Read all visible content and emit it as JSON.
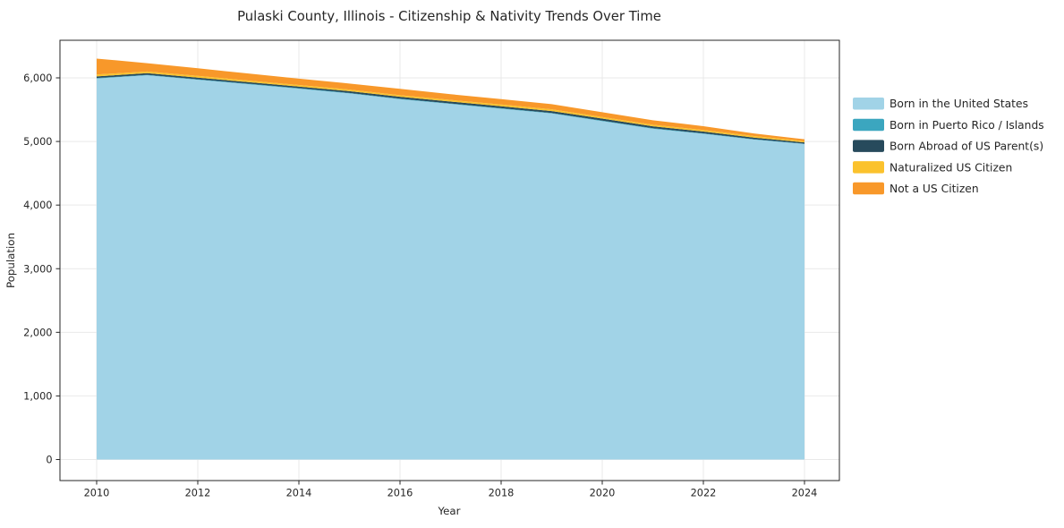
{
  "title": "Pulaski County, Illinois - Citizenship & Nativity Trends Over Time",
  "axes": {
    "xlabel": "Year",
    "ylabel": "Population"
  },
  "colors": {
    "background": "#ffffff",
    "text": "#262626",
    "frame": "#262626",
    "grid": "#e9e9e9",
    "born_us": "#a1d3e7",
    "puerto_rico": "#3ba6bf",
    "born_abroad": "#274a5c",
    "naturalized": "#fbc22d",
    "not_citizen": "#f8982a"
  },
  "chart_data": {
    "type": "area",
    "stacked": true,
    "title": "Pulaski County, Illinois - Citizenship & Nativity Trends Over Time",
    "xlabel": "Year",
    "ylabel": "Population",
    "grid": true,
    "legend_position": "right",
    "x": [
      2010,
      2011,
      2012,
      2013,
      2014,
      2015,
      2016,
      2017,
      2018,
      2019,
      2020,
      2021,
      2022,
      2023,
      2024
    ],
    "xticks": [
      2010,
      2012,
      2014,
      2016,
      2018,
      2020,
      2022,
      2024
    ],
    "yticks": [
      0,
      1000,
      2000,
      3000,
      4000,
      5000,
      6000
    ],
    "ylim": [
      0,
      6590
    ],
    "series": [
      {
        "name": "Born in the United States",
        "color": "#a1d3e7",
        "values": [
          5990,
          6040,
          5970,
          5900,
          5830,
          5755,
          5665,
          5590,
          5515,
          5440,
          5320,
          5200,
          5120,
          5030,
          4960
        ]
      },
      {
        "name": "Born in Puerto Rico / Islands",
        "color": "#3ba6bf",
        "values": [
          8,
          8,
          8,
          8,
          8,
          8,
          8,
          8,
          8,
          8,
          8,
          8,
          8,
          6,
          5
        ]
      },
      {
        "name": "Born Abroad of US Parent(s)",
        "color": "#274a5c",
        "values": [
          25,
          25,
          25,
          25,
          25,
          28,
          30,
          30,
          30,
          30,
          32,
          30,
          28,
          25,
          20
        ]
      },
      {
        "name": "Naturalized US Citizen",
        "color": "#fbc22d",
        "values": [
          30,
          28,
          28,
          25,
          25,
          25,
          25,
          25,
          28,
          28,
          25,
          25,
          25,
          25,
          20
        ]
      },
      {
        "name": "Not a US Citizen",
        "color": "#f8982a",
        "values": [
          250,
          130,
          120,
          110,
          100,
          95,
          100,
          90,
          85,
          80,
          75,
          70,
          60,
          40,
          30
        ]
      }
    ]
  }
}
